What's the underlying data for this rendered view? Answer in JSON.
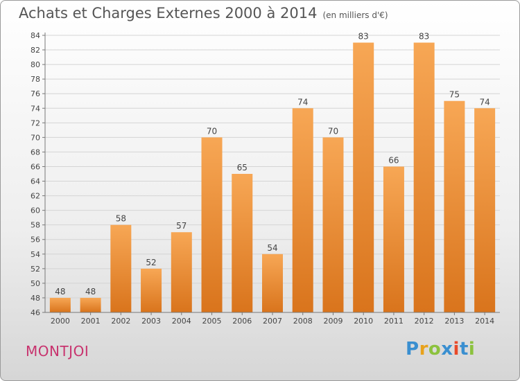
{
  "title": "Achats et Charges Externes 2000 à 2014",
  "subtitle": "(en milliers d'€)",
  "commune": "MONTJOI",
  "logo": {
    "letters": [
      "P",
      "r",
      "o",
      "x",
      "i",
      "t",
      "i"
    ],
    "colors": [
      "#3a8fd0",
      "#e8a21c",
      "#8cc23e",
      "#3a8fd0",
      "#e84a2a",
      "#3a8fd0",
      "#8cc23e"
    ]
  },
  "colors": {
    "bar_top": "#f7a755",
    "bar_bottom": "#d9741c",
    "grid": "#d4d4d4",
    "axis": "#777777",
    "text": "#444444"
  },
  "chart_data": {
    "type": "bar",
    "categories": [
      "2000",
      "2001",
      "2002",
      "2003",
      "2004",
      "2005",
      "2006",
      "2007",
      "2008",
      "2009",
      "2010",
      "2011",
      "2012",
      "2013",
      "2014"
    ],
    "values": [
      48,
      48,
      58,
      52,
      57,
      70,
      65,
      54,
      74,
      70,
      83,
      66,
      83,
      75,
      74
    ],
    "ylim": [
      46,
      84
    ],
    "yticks": [
      46,
      48,
      50,
      52,
      54,
      56,
      58,
      60,
      62,
      64,
      66,
      68,
      70,
      72,
      74,
      76,
      78,
      80,
      82,
      84
    ],
    "grid": true
  }
}
